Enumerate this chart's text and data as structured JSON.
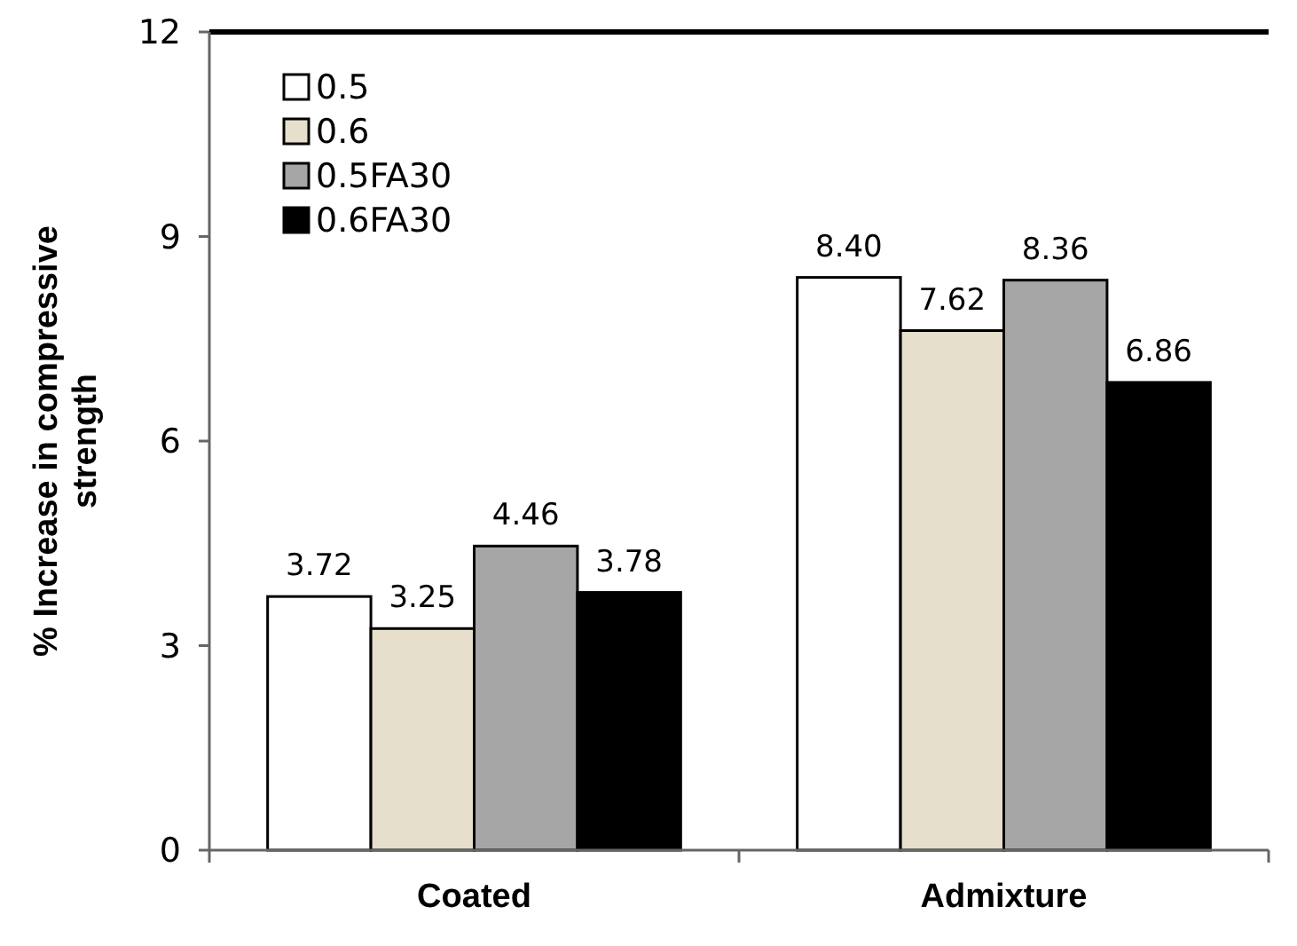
{
  "chart_data": {
    "type": "bar",
    "ylabel": "% Increase in compressive strength",
    "categories": [
      "Coated",
      "Admixture"
    ],
    "series": [
      {
        "name": "0.5",
        "color": "#ffffff",
        "values": [
          3.72,
          8.4
        ]
      },
      {
        "name": "0.6",
        "color": "#e6dfcc",
        "values": [
          3.25,
          7.62
        ]
      },
      {
        "name": "0.5FA30",
        "color": "#a6a6a6",
        "values": [
          4.46,
          8.36
        ]
      },
      {
        "name": "0.6FA30",
        "color": "#000000",
        "values": [
          3.78,
          6.86
        ]
      }
    ],
    "value_labels": [
      [
        "3.72",
        "8.40"
      ],
      [
        "3.25",
        "7.62"
      ],
      [
        "4.46",
        "8.36"
      ],
      [
        "3.78",
        "6.86"
      ]
    ],
    "ylim": [
      0,
      12
    ],
    "yticks": [
      0,
      3,
      6,
      9,
      12
    ],
    "legend": "top left",
    "grid": false
  }
}
